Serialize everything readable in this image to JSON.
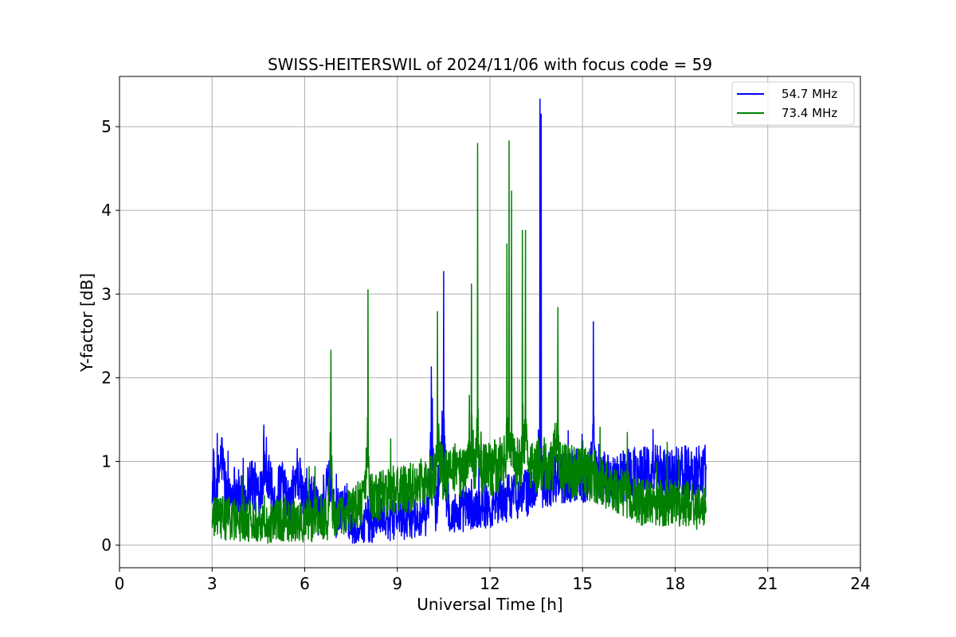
{
  "chart_data": {
    "type": "line",
    "title": "SWISS-HEITERSWIL of 2024/11/06 with focus code = 59",
    "xlabel": "Universal Time [h]",
    "ylabel": "Y-factor [dB]",
    "xlim": [
      0,
      24
    ],
    "ylim": [
      -0.27,
      5.6
    ],
    "xticks": [
      0,
      3,
      6,
      9,
      12,
      15,
      18,
      21,
      24
    ],
    "yticks": [
      0,
      1,
      2,
      3,
      4,
      5
    ],
    "grid": true,
    "legend_position": "top-right",
    "series": [
      {
        "name": "54.7 MHz",
        "color": "#0000ff",
        "x": [
          3.0,
          3.05,
          3.1,
          3.3,
          3.5,
          3.75,
          4.0,
          4.25,
          4.5,
          4.75,
          5.0,
          5.25,
          5.5,
          5.75,
          6.0,
          6.25,
          6.5,
          6.75,
          6.85,
          7.0,
          7.25,
          7.5,
          7.75,
          8.0,
          8.25,
          8.5,
          8.75,
          9.0,
          9.25,
          9.5,
          9.75,
          10.0,
          10.1,
          10.25,
          10.45,
          10.5,
          10.6,
          10.75,
          11.0,
          11.25,
          11.5,
          11.75,
          12.0,
          12.25,
          12.5,
          12.75,
          13.0,
          13.25,
          13.5,
          13.62,
          13.66,
          13.7,
          13.85,
          14.0,
          14.25,
          14.5,
          14.75,
          15.0,
          15.25,
          15.35,
          15.45,
          15.75,
          16.0,
          16.25,
          16.5,
          16.75,
          17.0,
          17.25,
          17.5,
          17.75,
          18.0,
          18.25,
          18.5,
          18.75,
          19.0
        ],
        "y": [
          0.5,
          1.05,
          0.45,
          1.1,
          0.5,
          0.7,
          0.5,
          0.8,
          0.6,
          1.0,
          0.5,
          0.75,
          0.45,
          0.9,
          0.5,
          0.6,
          0.3,
          0.7,
          0.8,
          0.3,
          0.5,
          0.25,
          0.2,
          0.3,
          0.25,
          0.35,
          0.3,
          0.35,
          0.3,
          0.35,
          0.3,
          0.4,
          2.13,
          0.35,
          1.6,
          3.27,
          0.5,
          0.35,
          0.4,
          0.45,
          0.4,
          0.5,
          0.45,
          0.55,
          0.55,
          0.6,
          0.6,
          0.65,
          0.75,
          5.33,
          5.15,
          0.7,
          0.75,
          0.75,
          0.8,
          0.8,
          0.85,
          0.8,
          0.85,
          2.67,
          0.8,
          0.8,
          0.75,
          0.8,
          0.85,
          0.85,
          0.9,
          0.85,
          0.9,
          0.85,
          0.85,
          0.9,
          0.85,
          0.9,
          0.9
        ]
      },
      {
        "name": "73.4 MHz",
        "color": "#008000",
        "x": [
          3.0,
          3.25,
          3.5,
          3.75,
          4.0,
          4.25,
          4.5,
          4.75,
          5.0,
          5.25,
          5.5,
          5.75,
          6.0,
          6.25,
          6.5,
          6.75,
          6.85,
          6.9,
          7.0,
          7.25,
          7.5,
          7.75,
          7.95,
          8.05,
          8.1,
          8.25,
          8.5,
          8.75,
          9.0,
          9.25,
          9.5,
          9.75,
          10.0,
          10.25,
          10.3,
          10.5,
          10.75,
          11.0,
          11.25,
          11.4,
          11.5,
          11.6,
          11.65,
          11.75,
          12.0,
          12.25,
          12.5,
          12.55,
          12.62,
          12.7,
          12.75,
          13.0,
          13.05,
          13.15,
          13.25,
          13.5,
          13.75,
          14.0,
          14.2,
          14.25,
          14.5,
          14.75,
          15.0,
          15.25,
          15.5,
          15.75,
          16.0,
          16.25,
          16.5,
          16.75,
          17.0,
          17.25,
          17.5,
          17.75,
          18.0,
          18.25,
          18.5,
          18.75,
          19.0
        ],
        "y": [
          0.3,
          0.35,
          0.3,
          0.3,
          0.25,
          0.3,
          0.3,
          0.25,
          0.3,
          0.3,
          0.3,
          0.25,
          0.3,
          0.3,
          0.35,
          0.3,
          2.33,
          0.4,
          0.3,
          0.35,
          0.45,
          0.5,
          0.55,
          3.05,
          0.6,
          0.55,
          0.6,
          0.65,
          0.65,
          0.65,
          0.7,
          0.75,
          0.75,
          0.8,
          2.79,
          0.8,
          0.85,
          0.85,
          0.9,
          3.12,
          0.9,
          4.8,
          1.2,
          0.9,
          0.9,
          0.95,
          0.95,
          3.6,
          4.83,
          4.23,
          0.95,
          0.95,
          3.76,
          3.76,
          0.95,
          0.95,
          0.95,
          0.9,
          2.84,
          0.9,
          0.9,
          0.85,
          0.85,
          0.85,
          0.8,
          0.75,
          0.7,
          0.65,
          0.6,
          0.55,
          0.5,
          0.5,
          0.5,
          0.5,
          0.5,
          0.5,
          0.5,
          0.45,
          0.45
        ]
      }
    ]
  }
}
